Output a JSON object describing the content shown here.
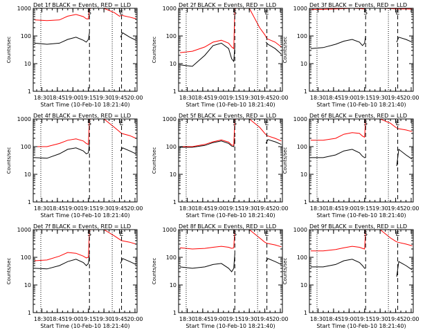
{
  "figure": {
    "header_suffix": "BLACK = Events, RED = LLD",
    "xlabel": "Start Time (10-Feb-10 18:21:40)",
    "ylabel": "Counts/sec",
    "colors": {
      "events": "#000000",
      "lld": "#ff0000",
      "axes": "#000000",
      "background": "#ffffff"
    }
  },
  "chart_data": [
    {
      "type": "line",
      "panel": 1,
      "title": "Det 1f BLACK = Events, RED = LLD",
      "x_ticks": [
        "18:30",
        "18:45",
        "19:00",
        "19:15",
        "19:30",
        "19:45",
        "20:00"
      ],
      "xlim": [
        "18:21:40",
        "20:02"
      ],
      "y_scale": "log",
      "ylim": [
        1,
        1000
      ],
      "y_ticks": [
        "1",
        "10",
        "100",
        "1000"
      ],
      "vlines_dotted": [
        "18:29",
        "19:38"
      ],
      "vlines_dashed": [
        "19:16",
        "19:47"
      ],
      "markers": [
        {
          "text": "S",
          "x": "19:16"
        },
        {
          "text": "E",
          "x": "19:47"
        }
      ],
      "series": [
        {
          "role": "events",
          "x": [
            "18:23",
            "18:35",
            "18:47",
            "18:55",
            "19:03",
            "19:10",
            "19:13",
            "19:15",
            "19:16",
            "19:17",
            "19:45",
            "19:46",
            "19:48",
            "19:55",
            "20:01"
          ],
          "y": [
            55,
            50,
            55,
            75,
            90,
            70,
            60,
            75,
            130,
            null,
            null,
            90,
            130,
            90,
            70
          ]
        },
        {
          "role": "lld",
          "x": [
            "18:23",
            "18:35",
            "18:47",
            "18:55",
            "19:03",
            "19:10",
            "19:13",
            "19:15",
            "19:16",
            "19:17",
            "19:30",
            "19:40",
            "19:45",
            "19:47",
            "19:55",
            "20:01"
          ],
          "y": [
            380,
            360,
            380,
            520,
            600,
            500,
            420,
            410,
            900,
            1000,
            1000,
            700,
            520,
            560,
            480,
            420
          ]
        }
      ]
    },
    {
      "type": "line",
      "panel": 2,
      "title": "Det 2f BLACK = Events, RED = LLD",
      "x_ticks": [
        "18:30",
        "18:45",
        "19:00",
        "19:15",
        "19:30",
        "19:45",
        "20:00"
      ],
      "xlim": [
        "18:21:40",
        "20:02"
      ],
      "y_scale": "log",
      "ylim": [
        1,
        1000
      ],
      "y_ticks": [
        "1",
        "10",
        "100",
        "1000"
      ],
      "vlines_dotted": [
        "18:29",
        "19:38"
      ],
      "vlines_dashed": [
        "19:16",
        "19:47"
      ],
      "markers": [
        {
          "text": "S",
          "x": "19:16"
        },
        {
          "text": "E",
          "x": "19:47"
        }
      ],
      "series": [
        {
          "role": "events",
          "x": [
            "18:23",
            "18:35",
            "18:47",
            "18:55",
            "19:03",
            "19:10",
            "19:13",
            "19:15",
            "19:16",
            "19:17",
            "19:45",
            "19:46",
            "19:48",
            "19:55",
            "20:01"
          ],
          "y": [
            9,
            8,
            20,
            45,
            55,
            35,
            15,
            12,
            40,
            null,
            null,
            60,
            50,
            35,
            22
          ]
        },
        {
          "role": "lld",
          "x": [
            "18:23",
            "18:35",
            "18:47",
            "18:55",
            "19:03",
            "19:10",
            "19:13",
            "19:15",
            "19:16",
            "19:17",
            "19:30",
            "19:40",
            "19:45",
            "19:47",
            "19:55",
            "20:01"
          ],
          "y": [
            25,
            28,
            40,
            60,
            70,
            55,
            40,
            35,
            900,
            1000,
            1000,
            200,
            110,
            80,
            60,
            40
          ]
        }
      ]
    },
    {
      "type": "line",
      "panel": 3,
      "title": "Det 3f BLACK = Events, RED = LLD",
      "x_ticks": [
        "18:30",
        "18:45",
        "19:00",
        "19:15",
        "19:30",
        "19:45",
        "20:00"
      ],
      "xlim": [
        "18:21:40",
        "20:02"
      ],
      "y_scale": "log",
      "ylim": [
        1,
        1000
      ],
      "y_ticks": [
        "1",
        "10",
        "100",
        "1000"
      ],
      "vlines_dotted": [
        "18:29",
        "19:38"
      ],
      "vlines_dashed": [
        "19:16",
        "19:47"
      ],
      "markers": [
        {
          "text": "S",
          "x": "19:16"
        },
        {
          "text": "E",
          "x": "19:47"
        }
      ],
      "series": [
        {
          "role": "events",
          "x": [
            "18:23",
            "18:35",
            "18:47",
            "18:55",
            "19:03",
            "19:10",
            "19:13",
            "19:15",
            "19:16",
            "19:17",
            "19:45",
            "19:46",
            "19:48",
            "19:55",
            "20:01"
          ],
          "y": [
            35,
            38,
            50,
            65,
            75,
            60,
            45,
            55,
            100,
            null,
            null,
            60,
            90,
            75,
            60
          ]
        },
        {
          "role": "lld",
          "x": [
            "18:23",
            "18:35",
            "18:47",
            "18:55",
            "19:03",
            "19:10",
            "19:13",
            "19:15",
            "19:16",
            "19:17",
            "19:30",
            "19:40",
            "19:45",
            "19:47",
            "19:55",
            "20:01"
          ],
          "y": [
            900,
            920,
            950,
            970,
            1000,
            980,
            960,
            950,
            1000,
            1000,
            1000,
            980,
            950,
            950,
            950,
            940
          ]
        }
      ]
    },
    {
      "type": "line",
      "panel": 4,
      "title": "Det 4f BLACK = Events, RED = LLD",
      "x_ticks": [
        "18:30",
        "18:45",
        "19:00",
        "19:15",
        "19:30",
        "19:45",
        "20:00"
      ],
      "xlim": [
        "18:21:40",
        "20:02"
      ],
      "y_scale": "log",
      "ylim": [
        1,
        1000
      ],
      "y_ticks": [
        "1",
        "10",
        "100",
        "1000"
      ],
      "vlines_dotted": [
        "18:29",
        "19:38"
      ],
      "vlines_dashed": [
        "19:16",
        "19:47"
      ],
      "markers": [
        {
          "text": "S",
          "x": "19:16"
        },
        {
          "text": "E",
          "x": "19:47"
        }
      ],
      "series": [
        {
          "role": "events",
          "x": [
            "18:23",
            "18:35",
            "18:47",
            "18:55",
            "19:03",
            "19:10",
            "19:13",
            "19:15",
            "19:16",
            "19:17",
            "19:45",
            "19:46",
            "19:48",
            "19:55",
            "20:01"
          ],
          "y": [
            40,
            38,
            55,
            80,
            90,
            70,
            55,
            60,
            130,
            null,
            null,
            70,
            90,
            70,
            55
          ]
        },
        {
          "role": "lld",
          "x": [
            "18:23",
            "18:35",
            "18:47",
            "18:55",
            "19:03",
            "19:10",
            "19:13",
            "19:15",
            "19:16",
            "19:17",
            "19:30",
            "19:40",
            "19:45",
            "19:47",
            "19:55",
            "20:01"
          ],
          "y": [
            100,
            100,
            130,
            170,
            190,
            160,
            130,
            120,
            900,
            1000,
            1000,
            500,
            350,
            300,
            250,
            200
          ]
        }
      ]
    },
    {
      "type": "line",
      "panel": 5,
      "title": "Det 5f BLACK = Events, RED = LLD",
      "x_ticks": [
        "18:30",
        "18:45",
        "19:00",
        "19:15",
        "19:30",
        "19:45",
        "20:00"
      ],
      "xlim": [
        "18:21:40",
        "20:02"
      ],
      "y_scale": "log",
      "ylim": [
        1,
        1000
      ],
      "y_ticks": [
        "1",
        "10",
        "100",
        "1000"
      ],
      "vlines_dotted": [
        "18:29",
        "19:38"
      ],
      "vlines_dashed": [
        "19:16",
        "19:47"
      ],
      "markers": [
        {
          "text": "S",
          "x": "19:16"
        },
        {
          "text": "E",
          "x": "19:47"
        }
      ],
      "series": [
        {
          "role": "events",
          "x": [
            "18:23",
            "18:35",
            "18:47",
            "18:55",
            "19:03",
            "19:10",
            "19:13",
            "19:15",
            "19:16",
            "19:17",
            "19:45",
            "19:46",
            "19:48",
            "19:55",
            "20:01"
          ],
          "y": [
            95,
            95,
            110,
            140,
            160,
            130,
            105,
            100,
            200,
            null,
            null,
            130,
            180,
            150,
            120
          ]
        },
        {
          "role": "lld",
          "x": [
            "18:23",
            "18:35",
            "18:47",
            "18:55",
            "19:03",
            "19:10",
            "19:13",
            "19:15",
            "19:16",
            "19:17",
            "19:30",
            "19:40",
            "19:45",
            "19:47",
            "19:55",
            "20:01"
          ],
          "y": [
            100,
            100,
            120,
            150,
            175,
            145,
            115,
            110,
            900,
            1000,
            1000,
            500,
            300,
            250,
            200,
            160
          ]
        }
      ]
    },
    {
      "type": "line",
      "panel": 6,
      "title": "Det 6f BLACK = Events, RED = LLD",
      "x_ticks": [
        "18:30",
        "18:45",
        "19:00",
        "19:15",
        "19:30",
        "19:45",
        "20:00"
      ],
      "xlim": [
        "18:21:40",
        "20:02"
      ],
      "y_scale": "log",
      "ylim": [
        1,
        1000
      ],
      "y_ticks": [
        "1",
        "10",
        "100",
        "1000"
      ],
      "vlines_dotted": [
        "18:29",
        "19:38"
      ],
      "vlines_dashed": [
        "19:16",
        "19:47"
      ],
      "markers": [
        {
          "text": "S",
          "x": "19:16"
        },
        {
          "text": "E",
          "x": "19:47"
        }
      ],
      "series": [
        {
          "role": "events",
          "x": [
            "18:23",
            "18:35",
            "18:47",
            "18:55",
            "19:03",
            "19:10",
            "19:13",
            "19:15",
            "19:16",
            "19:17",
            "19:45",
            "19:46",
            "19:48",
            "19:55",
            "20:01"
          ],
          "y": [
            40,
            40,
            50,
            70,
            80,
            60,
            45,
            40,
            40,
            null,
            null,
            20,
            80,
            50,
            35
          ]
        },
        {
          "role": "lld",
          "x": [
            "18:23",
            "18:35",
            "18:47",
            "18:55",
            "19:03",
            "19:10",
            "19:13",
            "19:15",
            "19:16",
            "19:17",
            "19:30",
            "19:40",
            "19:45",
            "19:47",
            "19:55",
            "20:01"
          ],
          "y": [
            170,
            170,
            200,
            280,
            320,
            300,
            240,
            220,
            1000,
            1000,
            1000,
            700,
            500,
            450,
            400,
            350
          ]
        }
      ]
    },
    {
      "type": "line",
      "panel": 7,
      "title": "Det 7f BLACK = Events, RED = LLD",
      "x_ticks": [
        "18:30",
        "18:45",
        "19:00",
        "19:15",
        "19:30",
        "19:45",
        "20:00"
      ],
      "xlim": [
        "18:21:40",
        "20:02"
      ],
      "y_scale": "log",
      "ylim": [
        1,
        1000
      ],
      "y_ticks": [
        "1",
        "10",
        "100",
        "1000"
      ],
      "vlines_dotted": [
        "18:29",
        "19:38"
      ],
      "vlines_dashed": [
        "19:16",
        "19:47"
      ],
      "markers": [
        {
          "text": "S",
          "x": "19:16"
        },
        {
          "text": "E",
          "x": "19:47"
        }
      ],
      "series": [
        {
          "role": "events",
          "x": [
            "18:23",
            "18:35",
            "18:47",
            "18:55",
            "19:03",
            "19:10",
            "19:13",
            "19:15",
            "19:16",
            "19:17",
            "19:45",
            "19:46",
            "19:48",
            "19:55",
            "20:01"
          ],
          "y": [
            40,
            38,
            50,
            70,
            85,
            65,
            50,
            60,
            120,
            null,
            null,
            60,
            90,
            70,
            55
          ]
        },
        {
          "role": "lld",
          "x": [
            "18:23",
            "18:35",
            "18:47",
            "18:55",
            "19:03",
            "19:10",
            "19:13",
            "19:15",
            "19:16",
            "19:17",
            "19:30",
            "19:40",
            "19:45",
            "19:47",
            "19:55",
            "20:01"
          ],
          "y": [
            75,
            80,
            110,
            150,
            140,
            110,
            95,
            100,
            900,
            1000,
            1000,
            600,
            450,
            400,
            350,
            300
          ]
        }
      ]
    },
    {
      "type": "line",
      "panel": 8,
      "title": "Det 8f BLACK = Events, RED = LLD",
      "x_ticks": [
        "18:30",
        "18:45",
        "19:00",
        "19:15",
        "19:30",
        "19:45",
        "20:00"
      ],
      "xlim": [
        "18:21:40",
        "20:02"
      ],
      "y_scale": "log",
      "ylim": [
        1,
        1000
      ],
      "y_ticks": [
        "1",
        "10",
        "100",
        "1000"
      ],
      "vlines_dotted": [
        "18:29",
        "19:38"
      ],
      "vlines_dashed": [
        "19:16",
        "19:47"
      ],
      "markers": [
        {
          "text": "S",
          "x": "19:16"
        },
        {
          "text": "E",
          "x": "19:47"
        }
      ],
      "series": [
        {
          "role": "events",
          "x": [
            "18:23",
            "18:35",
            "18:47",
            "18:55",
            "19:03",
            "19:10",
            "19:13",
            "19:15",
            "19:16",
            "19:17",
            "19:45",
            "19:46",
            "19:48",
            "19:55",
            "20:01"
          ],
          "y": [
            45,
            40,
            45,
            55,
            60,
            40,
            30,
            40,
            130,
            null,
            null,
            70,
            90,
            70,
            55
          ]
        },
        {
          "role": "lld",
          "x": [
            "18:23",
            "18:35",
            "18:47",
            "18:55",
            "19:03",
            "19:10",
            "19:13",
            "19:15",
            "19:16",
            "19:17",
            "19:30",
            "19:40",
            "19:45",
            "19:47",
            "19:55",
            "20:01"
          ],
          "y": [
            220,
            200,
            210,
            230,
            250,
            230,
            210,
            220,
            1000,
            1000,
            1000,
            500,
            350,
            320,
            280,
            240
          ]
        }
      ]
    },
    {
      "type": "line",
      "panel": 9,
      "title": "Det 9f BLACK = Events, RED = LLD",
      "x_ticks": [
        "18:30",
        "18:45",
        "19:00",
        "19:15",
        "19:30",
        "19:45",
        "20:00"
      ],
      "xlim": [
        "18:21:40",
        "20:02"
      ],
      "y_scale": "log",
      "ylim": [
        1,
        1000
      ],
      "y_ticks": [
        "1",
        "10",
        "100",
        "1000"
      ],
      "vlines_dotted": [
        "18:29",
        "19:38"
      ],
      "vlines_dashed": [
        "19:16",
        "19:47"
      ],
      "markers": [
        {
          "text": "S",
          "x": "19:16"
        },
        {
          "text": "E",
          "x": "19:47"
        }
      ],
      "series": [
        {
          "role": "events",
          "x": [
            "18:23",
            "18:35",
            "18:47",
            "18:55",
            "19:03",
            "19:10",
            "19:13",
            "19:15",
            "19:16",
            "19:17",
            "19:45",
            "19:46",
            "19:48",
            "19:55",
            "20:01"
          ],
          "y": [
            45,
            45,
            55,
            75,
            85,
            65,
            50,
            40,
            40,
            null,
            null,
            20,
            70,
            50,
            35
          ]
        },
        {
          "role": "lld",
          "x": [
            "18:23",
            "18:35",
            "18:47",
            "18:55",
            "19:03",
            "19:10",
            "19:13",
            "19:15",
            "19:16",
            "19:17",
            "19:30",
            "19:40",
            "19:45",
            "19:47",
            "19:55",
            "20:01"
          ],
          "y": [
            170,
            170,
            190,
            220,
            250,
            230,
            210,
            200,
            1000,
            1000,
            1000,
            500,
            380,
            350,
            300,
            260
          ]
        }
      ]
    }
  ]
}
